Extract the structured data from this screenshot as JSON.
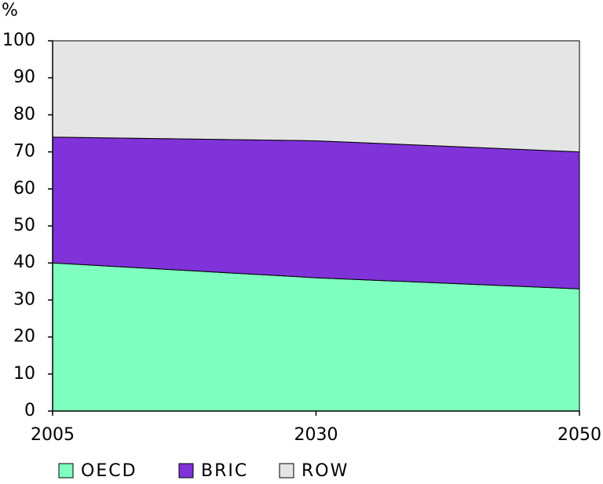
{
  "chart_data": {
    "type": "stacked_area",
    "y_label": "%",
    "categories": [
      "2005",
      "2030",
      "2050"
    ],
    "series": [
      {
        "name": "OECD",
        "color": "#7fffbf",
        "values": [
          40,
          36,
          33
        ]
      },
      {
        "name": "BRIC",
        "color": "#7f33d9",
        "values": [
          34,
          37,
          37
        ]
      },
      {
        "name": "ROW",
        "color": "#e5e5e5",
        "values": [
          26,
          27,
          30
        ]
      }
    ],
    "ylim": [
      0,
      100
    ],
    "yticks": [
      0,
      10,
      20,
      30,
      40,
      50,
      60,
      70,
      80,
      90,
      100
    ]
  }
}
